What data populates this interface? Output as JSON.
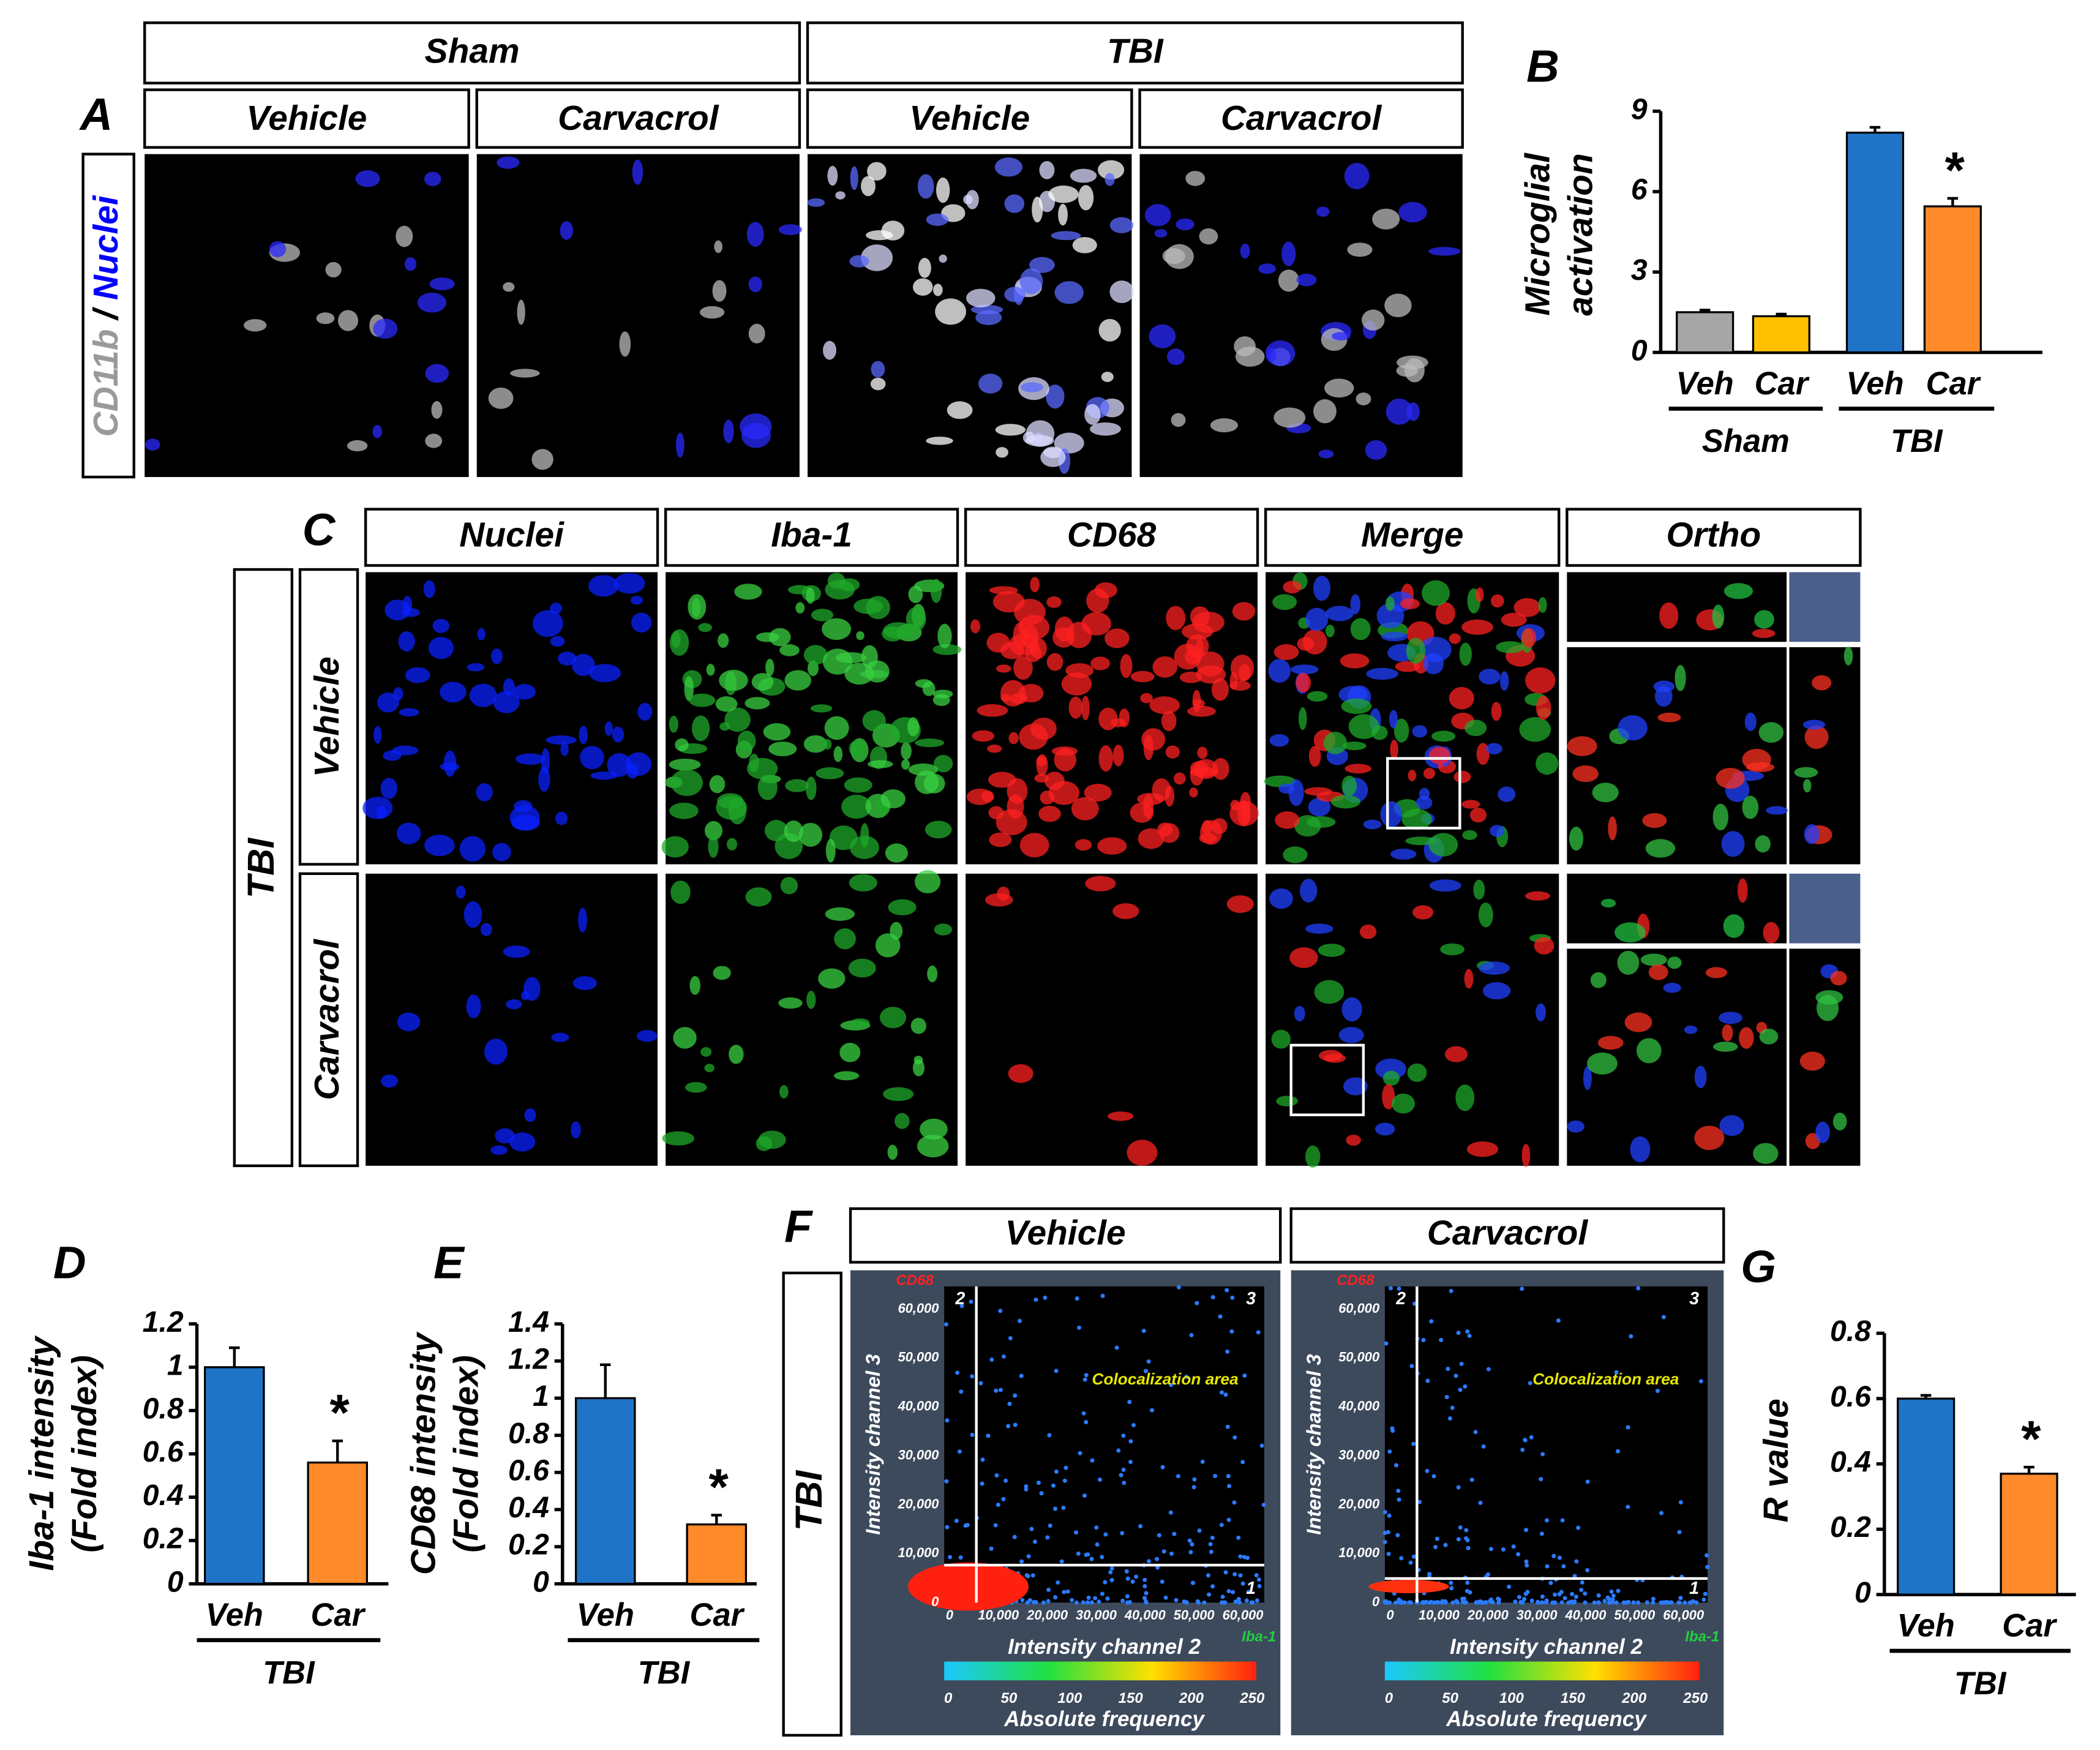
{
  "panel_a": {
    "label": "A",
    "groups": [
      "Sham",
      "TBI"
    ],
    "columns": [
      "Vehicle",
      "Carvacrol",
      "Vehicle",
      "Carvacrol"
    ],
    "stain": [
      "CD11b",
      "/",
      "Nuclei"
    ]
  },
  "panel_c": {
    "label": "C",
    "columns": [
      "Nuclei",
      "Iba-1",
      "CD68",
      "Merge",
      "Ortho"
    ],
    "group": "TBI",
    "rows": [
      "Vehicle",
      "Carvacrol"
    ]
  },
  "panel_f": {
    "label": "F",
    "row": "TBI",
    "columns": [
      "Vehicle",
      "Carvacrol"
    ],
    "y_axis_label": "Intensity channel 3",
    "x_axis_label": "Intensity channel 2",
    "y_channel": "CD68",
    "x_channel": "Iba-1",
    "quadrants": [
      "1",
      "2",
      "3"
    ],
    "area_label": "Colocalization area",
    "ticks": [
      "0",
      "10,000",
      "20,000",
      "30,000",
      "40,000",
      "50,000",
      "60,000"
    ],
    "colorbar_label": "Absolute frequency",
    "colorbar_ticks": [
      "0",
      "50",
      "100",
      "150",
      "200",
      "250"
    ]
  },
  "chart_data": [
    {
      "panel": "B",
      "type": "bar",
      "y_label": [
        "Microglial",
        "activation"
      ],
      "categories": [
        "Veh",
        "Car",
        "Veh",
        "Car"
      ],
      "groups": [
        "Sham",
        "TBI"
      ],
      "values": [
        1.5,
        1.35,
        8.2,
        5.45
      ],
      "errors": [
        0.08,
        0.08,
        0.2,
        0.3
      ],
      "colors": [
        "#a6a6a6",
        "#ffc000",
        "#1f74c8",
        "#ff8a2a"
      ],
      "significance": [
        null,
        null,
        null,
        "*"
      ],
      "ylim": [
        0,
        9
      ],
      "yticks": [
        0,
        3,
        6,
        9
      ]
    },
    {
      "panel": "D",
      "type": "bar",
      "y_label": [
        "Iba-1 intensity",
        "(Fold index)"
      ],
      "categories": [
        "Veh",
        "Car"
      ],
      "groups": [
        "TBI"
      ],
      "values": [
        1.0,
        0.56
      ],
      "errors": [
        0.09,
        0.1
      ],
      "colors": [
        "#1f74c8",
        "#ff8a2a"
      ],
      "significance": [
        null,
        "*"
      ],
      "ylim": [
        0,
        1.2
      ],
      "yticks": [
        0,
        0.2,
        0.4,
        0.6,
        0.8,
        1,
        1.2
      ]
    },
    {
      "panel": "E",
      "type": "bar",
      "y_label": [
        "CD68 intensity",
        "(Fold index)"
      ],
      "categories": [
        "Veh",
        "Car"
      ],
      "groups": [
        "TBI"
      ],
      "values": [
        1.0,
        0.32
      ],
      "errors": [
        0.18,
        0.05
      ],
      "colors": [
        "#1f74c8",
        "#ff8a2a"
      ],
      "significance": [
        null,
        "*"
      ],
      "ylim": [
        0,
        1.4
      ],
      "yticks": [
        0,
        0.2,
        0.4,
        0.6,
        0.8,
        1,
        1.2,
        1.4
      ]
    },
    {
      "panel": "G",
      "type": "bar",
      "y_label": [
        "R value"
      ],
      "categories": [
        "Veh",
        "Car"
      ],
      "groups": [
        "TBI"
      ],
      "values": [
        0.6,
        0.37
      ],
      "errors": [
        0.01,
        0.02
      ],
      "colors": [
        "#1f74c8",
        "#ff8a2a"
      ],
      "significance": [
        null,
        "*"
      ],
      "ylim": [
        0,
        0.8
      ],
      "yticks": [
        0,
        0.2,
        0.4,
        0.6,
        0.8
      ]
    }
  ]
}
